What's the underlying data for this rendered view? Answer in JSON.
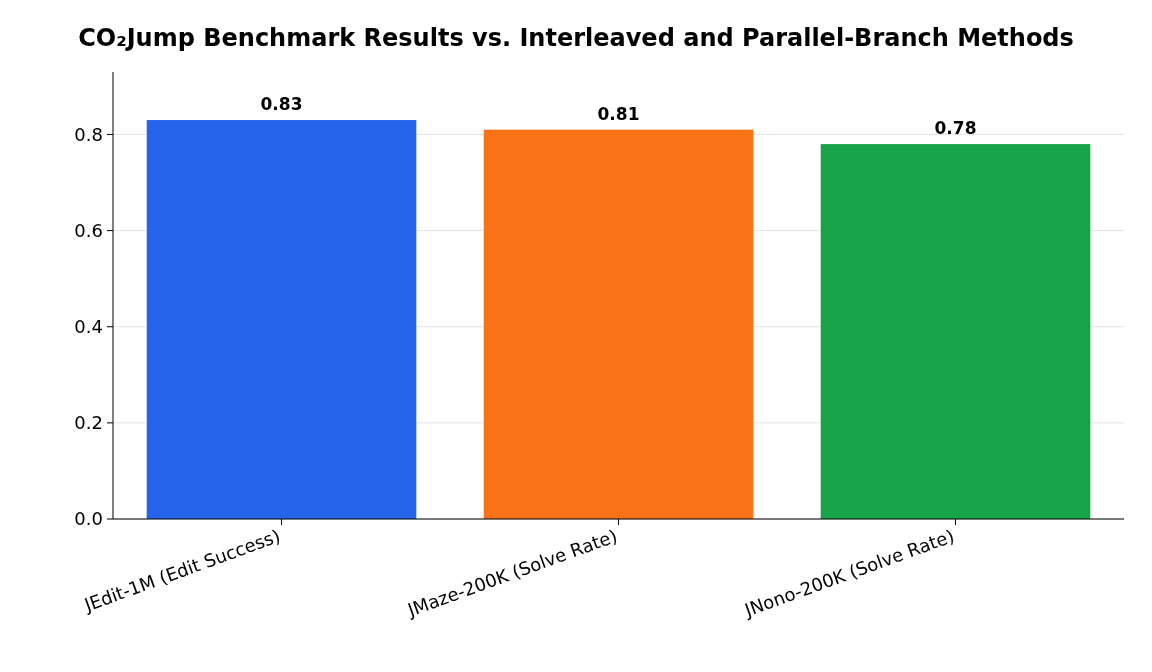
{
  "chart_data": {
    "type": "bar",
    "title": "CO₂Jump Benchmark Results vs. Interleaved and Parallel-Branch Methods",
    "categories": [
      "JEdit-1M (Edit Success)",
      "JMaze-200K (Solve Rate)",
      "JNono-200K (Solve Rate)"
    ],
    "values": [
      0.83,
      0.81,
      0.78
    ],
    "colors": [
      "#2563eb",
      "#f97316",
      "#16a34a"
    ],
    "ylim": [
      0,
      0.93
    ],
    "yticks": [
      {
        "value": 0,
        "label": "0.0"
      },
      {
        "value": 0.2,
        "label": "0.2"
      },
      {
        "value": 0.4,
        "label": "0.4"
      },
      {
        "value": 0.6,
        "label": "0.6"
      },
      {
        "value": 0.8,
        "label": "0.8"
      }
    ],
    "grid": "y",
    "data_labels": true
  }
}
